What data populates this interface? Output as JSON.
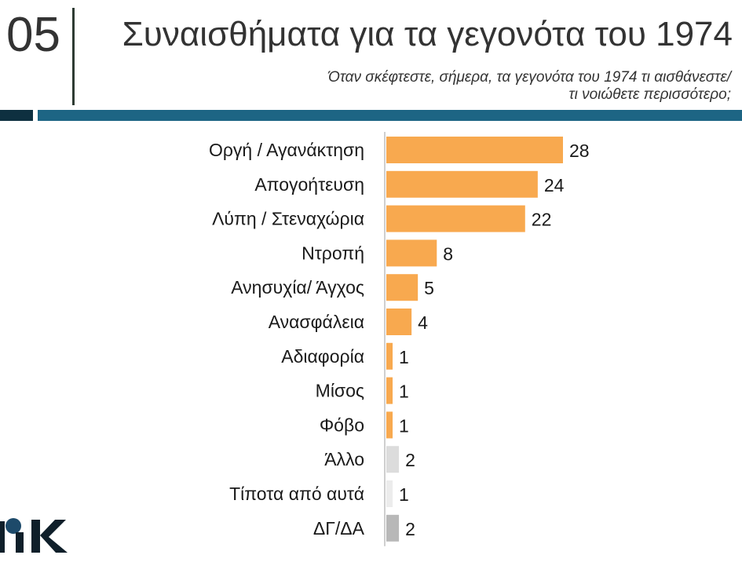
{
  "header": {
    "slide_number": "05",
    "title": "Συναισθήματα για τα γεγονότα του 1974",
    "question_line1": "Όταν σκέφτεστε, σήμερα, τα γεγονότα του 1974 τι αισθάνεστε/",
    "question_line2": "τι νοιώθετε περισσότερο;"
  },
  "colors": {
    "accent_orange": "#f8a94f",
    "other_light_gray": "#dcdcdc",
    "dk_gray": "#b8b8b8",
    "band_dark": "#0e3040",
    "band_blue": "#1d6584"
  },
  "logo": {
    "text": "ΠΚ",
    "icon": "logo-icon"
  },
  "chart_data": {
    "type": "bar",
    "orientation": "horizontal",
    "categories": [
      "Οργή / Αγανάκτηση",
      "Απογοήτευση",
      "Λύπη / Στεναχώρια",
      "Ντροπή",
      "Ανησυχία/ Άγχος",
      "Ανασφάλεια",
      "Αδιαφορία",
      "Μίσος",
      "Φόβο",
      "Άλλο",
      "Τίποτα από αυτά",
      "ΔΓ/ΔΑ"
    ],
    "values": [
      28,
      24,
      22,
      8,
      5,
      4,
      1,
      1,
      1,
      2,
      1,
      2
    ],
    "bar_colors": [
      "#f8a94f",
      "#f8a94f",
      "#f8a94f",
      "#f8a94f",
      "#f8a94f",
      "#f8a94f",
      "#f8a94f",
      "#f8a94f",
      "#f8a94f",
      "#dcdcdc",
      "#ececec",
      "#b8b8b8"
    ],
    "data_labels": [
      "28",
      "24",
      "22",
      "8",
      "5",
      "4",
      "1",
      "1",
      "1",
      "2",
      "1",
      "2"
    ],
    "xlim": [
      0,
      30
    ],
    "grid": false,
    "legend": "none"
  }
}
